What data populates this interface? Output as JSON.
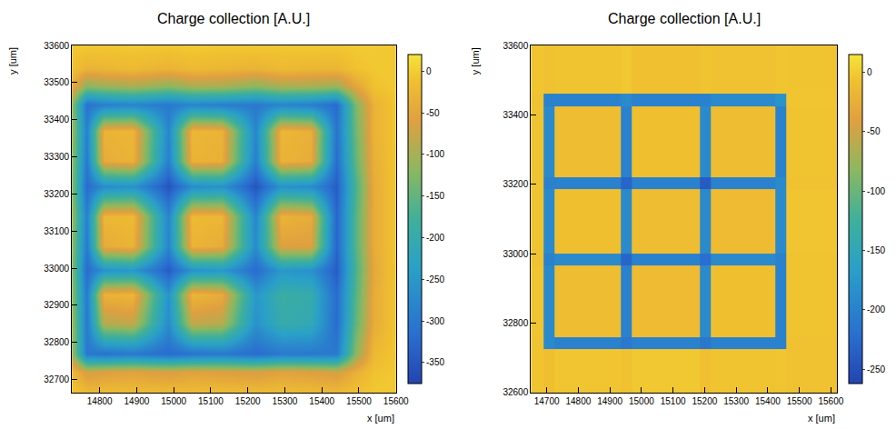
{
  "chart_data": [
    {
      "type": "heatmap",
      "title": "Charge collection [A.U.]",
      "x_label": "x [um]",
      "y_label": "y [um]",
      "x": [
        14700,
        14735,
        14765,
        14810,
        14890,
        14985,
        15050,
        15130,
        15220,
        15290,
        15370,
        15440,
        15490,
        15540,
        15600
      ],
      "y": [
        32650,
        32720,
        32770,
        32850,
        32930,
        32995,
        33060,
        33140,
        33220,
        33290,
        33370,
        33440,
        33490,
        33540,
        33600
      ],
      "z": [
        [
          -3,
          -5,
          -4,
          -6,
          -5,
          -4,
          -6,
          -3,
          -5,
          -4,
          -6,
          -5,
          -4,
          -3,
          -5
        ],
        [
          -5,
          -30,
          -70,
          -60,
          -55,
          -65,
          -55,
          -60,
          -65,
          -55,
          -60,
          -70,
          -35,
          -10,
          -4
        ],
        [
          -5,
          -150,
          -300,
          -310,
          -300,
          -320,
          -310,
          -300,
          -320,
          -300,
          -300,
          -300,
          -120,
          -20,
          -5
        ],
        [
          -5,
          -150,
          -300,
          -90,
          -80,
          -270,
          -80,
          -90,
          -260,
          -200,
          -210,
          -320,
          -150,
          -40,
          -5
        ],
        [
          -5,
          -160,
          -300,
          -30,
          -25,
          -260,
          -25,
          -40,
          -250,
          -190,
          -200,
          -320,
          -160,
          -40,
          -5
        ],
        [
          -5,
          -170,
          -320,
          -260,
          -250,
          -340,
          -260,
          -250,
          -320,
          -250,
          -260,
          -340,
          -170,
          -45,
          -5
        ],
        [
          -5,
          -160,
          -300,
          -40,
          -30,
          -280,
          -30,
          -40,
          -270,
          -60,
          -60,
          -330,
          -160,
          -40,
          -5
        ],
        [
          -5,
          -150,
          -290,
          -25,
          -20,
          -280,
          -20,
          -25,
          -280,
          -30,
          -40,
          -330,
          -160,
          -40,
          -5
        ],
        [
          -5,
          -170,
          -320,
          -270,
          -260,
          -350,
          -270,
          -260,
          -350,
          -260,
          -270,
          -340,
          -170,
          -40,
          -5
        ],
        [
          -5,
          -160,
          -300,
          -40,
          -30,
          -290,
          -30,
          -35,
          -290,
          -30,
          -40,
          -320,
          -150,
          -35,
          -5
        ],
        [
          -5,
          -150,
          -290,
          -30,
          -25,
          -280,
          -25,
          -30,
          -280,
          -25,
          -35,
          -310,
          -140,
          -30,
          -5
        ],
        [
          -5,
          -160,
          -310,
          -290,
          -280,
          -300,
          -280,
          -290,
          -300,
          -280,
          -290,
          -320,
          -130,
          -30,
          -5
        ],
        [
          -4,
          -60,
          -120,
          -110,
          -100,
          -120,
          -100,
          -100,
          -120,
          -100,
          -100,
          -110,
          -50,
          -10,
          -4
        ],
        [
          -3,
          -15,
          -30,
          -25,
          -20,
          -30,
          -20,
          -25,
          -30,
          -20,
          -25,
          -25,
          -10,
          -5,
          -4
        ],
        [
          -4,
          -5,
          -3,
          -6,
          -4,
          -5,
          -3,
          -5,
          -4,
          -6,
          -4,
          -5,
          -3,
          -4,
          -5
        ]
      ],
      "xlim": [
        14725,
        15600
      ],
      "ylim": [
        32665,
        33600
      ],
      "xticks": [
        14800,
        14900,
        15000,
        15100,
        15200,
        15300,
        15400,
        15500,
        15600
      ],
      "yticks": [
        32700,
        32800,
        32900,
        33000,
        33100,
        33200,
        33300,
        33400,
        33500,
        33600
      ],
      "zlim": [
        -375,
        20
      ],
      "zticks": [
        0,
        -50,
        -100,
        -150,
        -200,
        -250,
        -300,
        -350
      ],
      "grid": false
    },
    {
      "type": "heatmap",
      "title": "Charge collection [A.U.]",
      "x_label": "x [um]",
      "y_label": "y [um]",
      "x": [
        14650,
        14690,
        14725,
        14935,
        14970,
        15185,
        15220,
        15425,
        15460,
        15620
      ],
      "y": [
        32600,
        32725,
        32760,
        32965,
        33000,
        33185,
        33220,
        33425,
        33460,
        33600
      ],
      "z": [
        [
          -5,
          -8,
          -4,
          -6,
          -3,
          -7,
          -5,
          -4,
          -6
        ],
        [
          -5,
          -190,
          -200,
          -210,
          -200,
          -210,
          -200,
          -200,
          -6
        ],
        [
          -4,
          -190,
          -10,
          -200,
          -12,
          -190,
          -8,
          -200,
          -5
        ],
        [
          -6,
          -200,
          -190,
          -230,
          -200,
          -220,
          -190,
          -200,
          -5
        ],
        [
          -5,
          -190,
          -8,
          -190,
          -10,
          -190,
          -12,
          -190,
          -4
        ],
        [
          -4,
          -200,
          -200,
          -230,
          -200,
          -240,
          -200,
          -190,
          -6
        ],
        [
          -5,
          -190,
          -10,
          -200,
          -8,
          -190,
          -10,
          -200,
          -5
        ],
        [
          -6,
          -200,
          -200,
          -190,
          -200,
          -200,
          -190,
          -180,
          -4
        ],
        [
          -4,
          -6,
          -5,
          -3,
          -7,
          -5,
          -6,
          -4,
          -5
        ]
      ],
      "xlim": [
        14650,
        15620
      ],
      "ylim": [
        32600,
        33600
      ],
      "xticks": [
        14700,
        14800,
        14900,
        15000,
        15100,
        15200,
        15300,
        15400,
        15500,
        15600
      ],
      "yticks": [
        32600,
        32800,
        33000,
        33200,
        33400,
        33600
      ],
      "zlim": [
        -262,
        15
      ],
      "zticks": [
        0,
        -50,
        -100,
        -150,
        -200,
        -250
      ],
      "grid": false
    }
  ]
}
